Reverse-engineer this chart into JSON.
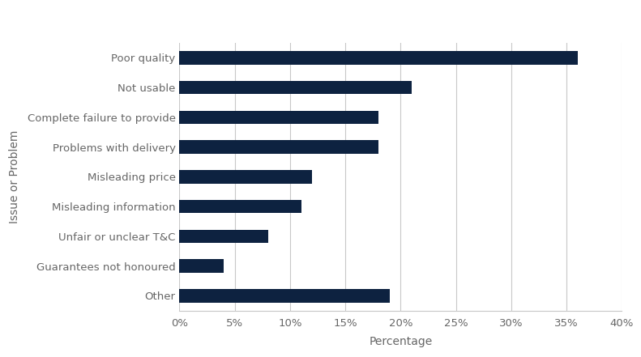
{
  "categories": [
    "Other",
    "Guarantees not honoured",
    "Unfair or unclear T&C",
    "Misleading information",
    "Misleading price",
    "Problems with delivery",
    "Complete failure to provide",
    "Not usable",
    "Poor quality"
  ],
  "values": [
    19,
    4,
    8,
    11,
    12,
    18,
    18,
    21,
    36
  ],
  "bar_color": "#0d2240",
  "xlabel": "Percentage",
  "ylabel": "Issue or Problem",
  "xlim": [
    0,
    40
  ],
  "xticks": [
    0,
    5,
    10,
    15,
    20,
    25,
    30,
    35,
    40
  ],
  "background_color": "#ffffff",
  "grid_color": "#c8c8c8",
  "tick_label_color": "#666666",
  "axis_label_color": "#666666",
  "legend_marker_color": "#0d2240",
  "bar_width": 0.45,
  "label_fontsize": 9.5,
  "xlabel_fontsize": 10,
  "ylabel_fontsize": 10
}
